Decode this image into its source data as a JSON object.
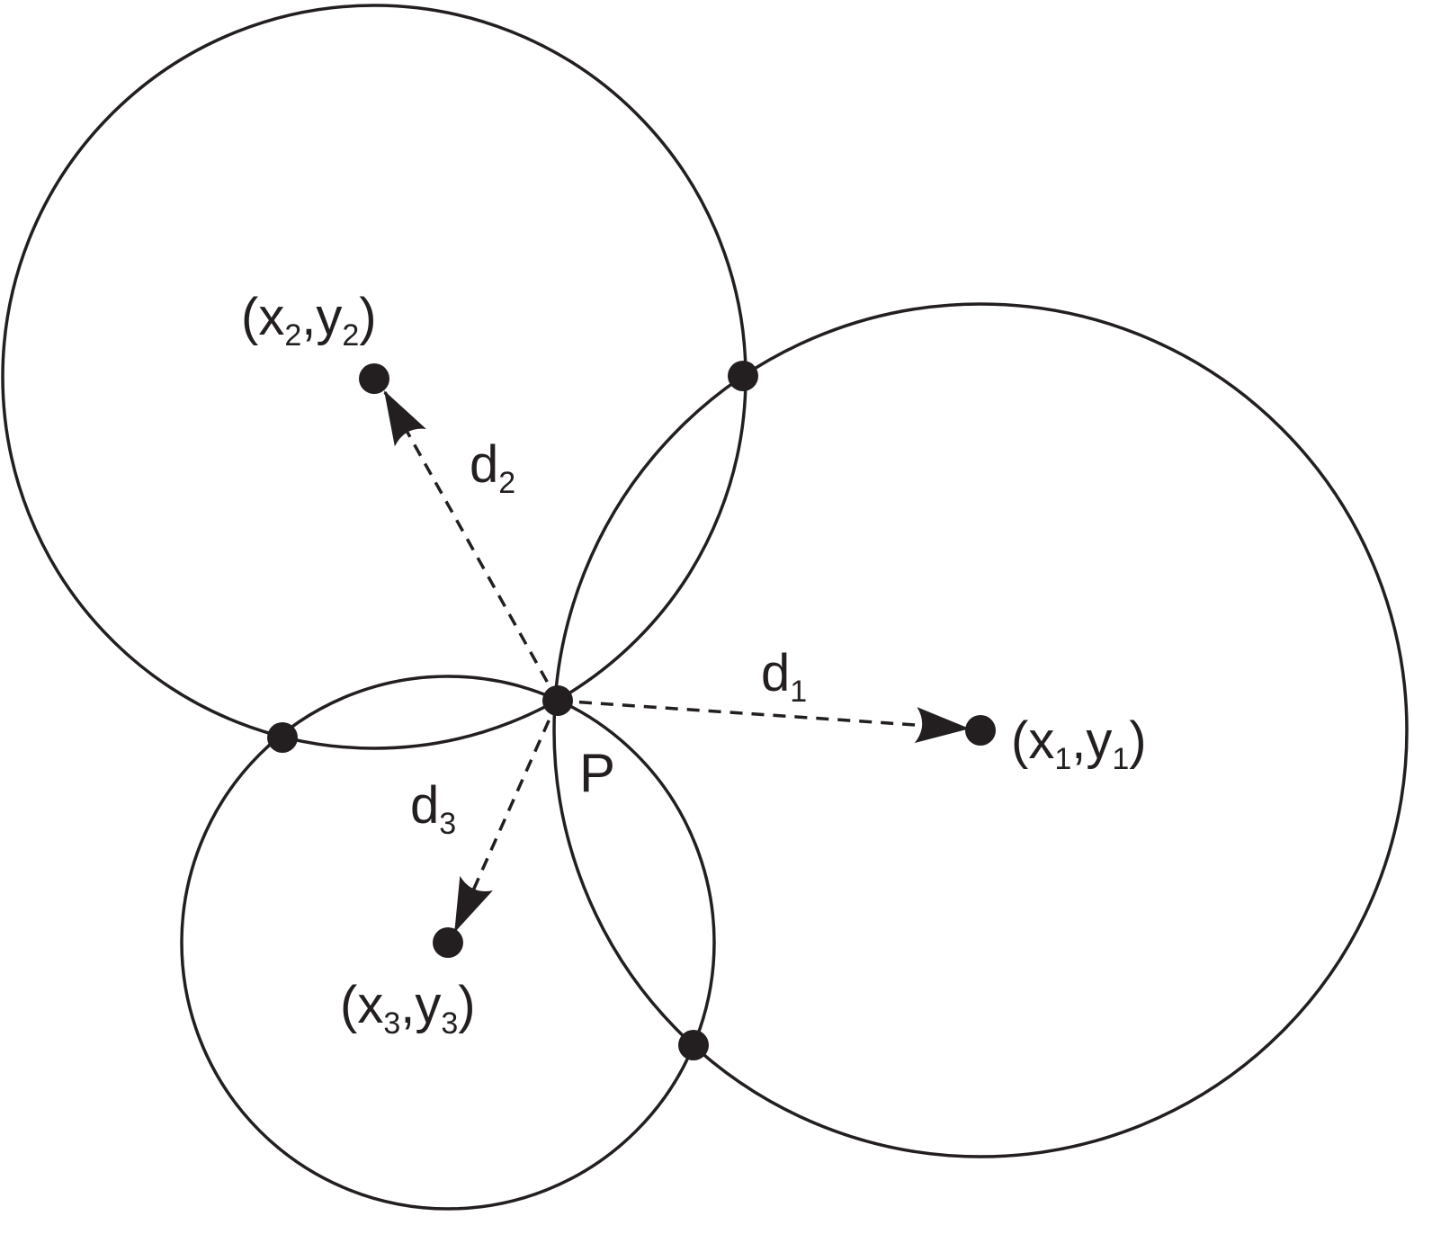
{
  "colors": {
    "ink": "#231f20",
    "background": "#ffffff"
  },
  "labels": {
    "center1": {
      "open": "(x",
      "sub_x": "1",
      "comma": ",y",
      "sub_y": "1",
      "close": ")"
    },
    "center2": {
      "open": "(x",
      "sub_x": "2",
      "comma": ",y",
      "sub_y": "2",
      "close": ")"
    },
    "center3": {
      "open": "(x",
      "sub_x": "3",
      "comma": ",y",
      "sub_y": "3",
      "close": ")"
    },
    "d1": {
      "letter": "d",
      "sub": "1"
    },
    "d2": {
      "letter": "d",
      "sub": "2"
    },
    "d3": {
      "letter": "d",
      "sub": "3"
    },
    "point_p": "P"
  }
}
